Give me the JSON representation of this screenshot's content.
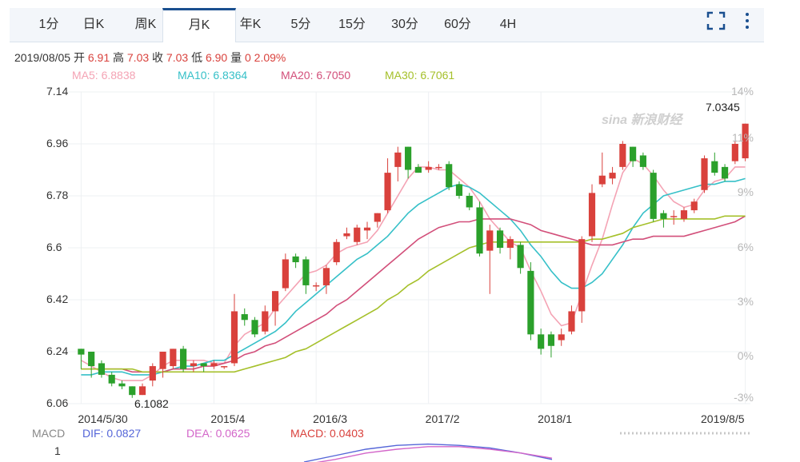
{
  "tabs": [
    "1分",
    "日K",
    "周K",
    "月K",
    "年K",
    "5分",
    "15分",
    "30分",
    "60分",
    "4H"
  ],
  "active_tab": "月K",
  "info": {
    "date": "2019/08/05",
    "open_label": "开",
    "open": "6.91",
    "high_label": "高",
    "high": "7.03",
    "close_label": "收",
    "close": "7.03",
    "low_label": "低",
    "low": "6.90",
    "vol_label": "量",
    "vol": "0",
    "change": "2.09%"
  },
  "ma": {
    "ma5": "MA5: 6.8838",
    "ma10": "MA10: 6.8364",
    "ma20": "MA20: 6.7050",
    "ma30": "MA30: 6.7061"
  },
  "colors": {
    "up": "#d9413c",
    "down": "#2ba02b",
    "ma5": "#f4a3b4",
    "ma10": "#36c0c8",
    "ma20": "#d24f7a",
    "ma30": "#a5c02a",
    "dif": "#5566d8",
    "dea": "#d366c9",
    "macd": "#d9413c",
    "tab_active": "#1a4f8f"
  },
  "watermark": "sina 新浪财经",
  "macd": {
    "label": "MACD",
    "dif": "DIF: 0.0827",
    "dea": "DEA: 0.0625",
    "macd": "MACD: 0.0403",
    "scale": "1"
  },
  "chart_data": {
    "type": "candlestick",
    "title": "",
    "ylim": [
      6.06,
      7.14
    ],
    "y_ticks": [
      "7.14",
      "6.96",
      "6.78",
      "6.6",
      "6.42",
      "6.24",
      "6.06"
    ],
    "y2_ticks": [
      "14%",
      "11%",
      "9%",
      "6%",
      "3%",
      "0%",
      "-3%"
    ],
    "x_ticks": [
      "2014/5/30",
      "2015/4",
      "2016/3",
      "2017/2",
      "2018/1",
      "2019/8/5"
    ],
    "annotations": {
      "max": "7.0345",
      "min": "6.1082"
    },
    "candles": [
      {
        "o": 6.25,
        "c": 6.23,
        "h": 6.25,
        "l": 6.18
      },
      {
        "o": 6.24,
        "c": 6.19,
        "h": 6.24,
        "l": 6.15
      },
      {
        "o": 6.2,
        "c": 6.16,
        "h": 6.21,
        "l": 6.15
      },
      {
        "o": 6.16,
        "c": 6.13,
        "h": 6.17,
        "l": 6.12
      },
      {
        "o": 6.13,
        "c": 6.12,
        "h": 6.14,
        "l": 6.11
      },
      {
        "o": 6.12,
        "c": 6.09,
        "h": 6.12,
        "l": 6.08
      },
      {
        "o": 6.09,
        "c": 6.12,
        "h": 6.13,
        "l": 6.09
      },
      {
        "o": 6.14,
        "c": 6.19,
        "h": 6.2,
        "l": 6.12
      },
      {
        "o": 6.18,
        "c": 6.24,
        "h": 6.24,
        "l": 6.15
      },
      {
        "o": 6.19,
        "c": 6.25,
        "h": 6.25,
        "l": 6.18
      },
      {
        "o": 6.25,
        "c": 6.18,
        "h": 6.26,
        "l": 6.17
      },
      {
        "o": 6.19,
        "c": 6.2,
        "h": 6.21,
        "l": 6.17
      },
      {
        "o": 6.2,
        "c": 6.19,
        "h": 6.2,
        "l": 6.17
      },
      {
        "o": 6.19,
        "c": 6.2,
        "h": 6.21,
        "l": 6.18
      },
      {
        "o": 6.19,
        "c": 6.19,
        "h": 6.19,
        "l": 6.18
      },
      {
        "o": 6.2,
        "c": 6.38,
        "h": 6.44,
        "l": 6.19
      },
      {
        "o": 6.37,
        "c": 6.35,
        "h": 6.39,
        "l": 6.33
      },
      {
        "o": 6.35,
        "c": 6.3,
        "h": 6.36,
        "l": 6.29
      },
      {
        "o": 6.31,
        "c": 6.38,
        "h": 6.4,
        "l": 6.3
      },
      {
        "o": 6.38,
        "c": 6.45,
        "h": 6.45,
        "l": 6.33
      },
      {
        "o": 6.46,
        "c": 6.56,
        "h": 6.58,
        "l": 6.45
      },
      {
        "o": 6.57,
        "c": 6.55,
        "h": 6.58,
        "l": 6.53
      },
      {
        "o": 6.56,
        "c": 6.47,
        "h": 6.57,
        "l": 6.44
      },
      {
        "o": 6.47,
        "c": 6.47,
        "h": 6.48,
        "l": 6.45
      },
      {
        "o": 6.47,
        "c": 6.53,
        "h": 6.54,
        "l": 6.44
      },
      {
        "o": 6.55,
        "c": 6.62,
        "h": 6.63,
        "l": 6.54
      },
      {
        "o": 6.64,
        "c": 6.65,
        "h": 6.67,
        "l": 6.63
      },
      {
        "o": 6.62,
        "c": 6.67,
        "h": 6.68,
        "l": 6.61
      },
      {
        "o": 6.66,
        "c": 6.67,
        "h": 6.69,
        "l": 6.63
      },
      {
        "o": 6.69,
        "c": 6.72,
        "h": 6.72,
        "l": 6.67
      },
      {
        "o": 6.73,
        "c": 6.86,
        "h": 6.91,
        "l": 6.72
      },
      {
        "o": 6.88,
        "c": 6.93,
        "h": 6.95,
        "l": 6.83
      },
      {
        "o": 6.95,
        "c": 6.87,
        "h": 6.95,
        "l": 6.84
      },
      {
        "o": 6.88,
        "c": 6.86,
        "h": 6.89,
        "l": 6.86
      },
      {
        "o": 6.87,
        "c": 6.88,
        "h": 6.9,
        "l": 6.86
      },
      {
        "o": 6.88,
        "c": 6.88,
        "h": 6.89,
        "l": 6.87
      },
      {
        "o": 6.89,
        "c": 6.81,
        "h": 6.9,
        "l": 6.8
      },
      {
        "o": 6.82,
        "c": 6.78,
        "h": 6.83,
        "l": 6.77
      },
      {
        "o": 6.78,
        "c": 6.74,
        "h": 6.79,
        "l": 6.73
      },
      {
        "o": 6.74,
        "c": 6.58,
        "h": 6.76,
        "l": 6.57
      },
      {
        "o": 6.59,
        "c": 6.66,
        "h": 6.68,
        "l": 6.44
      },
      {
        "o": 6.66,
        "c": 6.6,
        "h": 6.67,
        "l": 6.58
      },
      {
        "o": 6.6,
        "c": 6.63,
        "h": 6.64,
        "l": 6.56
      },
      {
        "o": 6.61,
        "c": 6.53,
        "h": 6.62,
        "l": 6.51
      },
      {
        "o": 6.52,
        "c": 6.3,
        "h": 6.55,
        "l": 6.28
      },
      {
        "o": 6.3,
        "c": 6.25,
        "h": 6.32,
        "l": 6.23
      },
      {
        "o": 6.3,
        "c": 6.26,
        "h": 6.31,
        "l": 6.22
      },
      {
        "o": 6.28,
        "c": 6.3,
        "h": 6.32,
        "l": 6.26
      },
      {
        "o": 6.31,
        "c": 6.38,
        "h": 6.4,
        "l": 6.3
      },
      {
        "o": 6.38,
        "c": 6.63,
        "h": 6.64,
        "l": 6.34
      },
      {
        "o": 6.64,
        "c": 6.79,
        "h": 6.82,
        "l": 6.62
      },
      {
        "o": 6.82,
        "c": 6.85,
        "h": 6.93,
        "l": 6.81
      },
      {
        "o": 6.84,
        "c": 6.86,
        "h": 6.88,
        "l": 6.82
      },
      {
        "o": 6.88,
        "c": 6.96,
        "h": 6.97,
        "l": 6.87
      },
      {
        "o": 6.95,
        "c": 6.9,
        "h": 6.95,
        "l": 6.88
      },
      {
        "o": 6.92,
        "c": 6.88,
        "h": 6.93,
        "l": 6.87
      },
      {
        "o": 6.86,
        "c": 6.7,
        "h": 6.87,
        "l": 6.69
      },
      {
        "o": 6.72,
        "c": 6.7,
        "h": 6.73,
        "l": 6.67
      },
      {
        "o": 6.71,
        "c": 6.71,
        "h": 6.73,
        "l": 6.68
      },
      {
        "o": 6.7,
        "c": 6.73,
        "h": 6.74,
        "l": 6.69
      },
      {
        "o": 6.73,
        "c": 6.76,
        "h": 6.77,
        "l": 6.72
      },
      {
        "o": 6.8,
        "c": 6.91,
        "h": 6.92,
        "l": 6.79
      },
      {
        "o": 6.9,
        "c": 6.86,
        "h": 6.93,
        "l": 6.85
      },
      {
        "o": 6.88,
        "c": 6.84,
        "h": 6.89,
        "l": 6.83
      },
      {
        "o": 6.9,
        "c": 6.96,
        "h": 6.97,
        "l": 6.89
      },
      {
        "o": 6.91,
        "c": 7.03,
        "h": 7.03,
        "l": 6.9
      }
    ],
    "ma_series": [
      {
        "name": "MA5",
        "values": [
          6.21,
          6.19,
          6.17,
          6.15,
          6.14,
          6.14,
          6.14,
          6.16,
          6.19,
          6.21,
          6.21,
          6.21,
          6.21,
          6.2,
          6.2,
          6.26,
          6.3,
          6.32,
          6.34,
          6.39,
          6.43,
          6.47,
          6.51,
          6.52,
          6.54,
          6.58,
          6.6,
          6.61,
          6.62,
          6.66,
          6.72,
          6.78,
          6.84,
          6.88,
          6.88,
          6.87,
          6.87,
          6.84,
          6.81,
          6.76,
          6.7,
          6.66,
          6.62,
          6.6,
          6.52,
          6.45,
          6.37,
          6.33,
          6.34,
          6.44,
          6.54,
          6.63,
          6.75,
          6.86,
          6.91,
          6.89,
          6.85,
          6.8,
          6.76,
          6.74,
          6.75,
          6.8,
          6.83,
          6.84,
          6.88,
          6.88
        ]
      },
      {
        "name": "MA10",
        "values": [
          6.16,
          6.16,
          6.17,
          6.17,
          6.17,
          6.16,
          6.16,
          6.16,
          6.17,
          6.18,
          6.19,
          6.19,
          6.2,
          6.21,
          6.21,
          6.23,
          6.25,
          6.27,
          6.29,
          6.31,
          6.34,
          6.38,
          6.41,
          6.44,
          6.47,
          6.5,
          6.53,
          6.56,
          6.58,
          6.61,
          6.64,
          6.68,
          6.72,
          6.75,
          6.77,
          6.79,
          6.81,
          6.82,
          6.81,
          6.79,
          6.76,
          6.73,
          6.7,
          6.66,
          6.61,
          6.57,
          6.52,
          6.48,
          6.46,
          6.46,
          6.48,
          6.51,
          6.56,
          6.61,
          6.67,
          6.72,
          6.75,
          6.78,
          6.79,
          6.8,
          6.81,
          6.82,
          6.82,
          6.83,
          6.83,
          6.84
        ]
      },
      {
        "name": "MA20",
        "values": [
          6.18,
          6.18,
          6.18,
          6.18,
          6.18,
          6.17,
          6.17,
          6.17,
          6.17,
          6.18,
          6.18,
          6.18,
          6.19,
          6.19,
          6.2,
          6.21,
          6.23,
          6.24,
          6.26,
          6.27,
          6.29,
          6.31,
          6.33,
          6.35,
          6.37,
          6.4,
          6.42,
          6.45,
          6.48,
          6.51,
          6.54,
          6.57,
          6.6,
          6.63,
          6.65,
          6.67,
          6.68,
          6.69,
          6.69,
          6.7,
          6.7,
          6.7,
          6.7,
          6.69,
          6.68,
          6.66,
          6.65,
          6.64,
          6.63,
          6.62,
          6.61,
          6.61,
          6.61,
          6.62,
          6.63,
          6.63,
          6.64,
          6.64,
          6.64,
          6.64,
          6.65,
          6.66,
          6.67,
          6.68,
          6.69,
          6.71
        ]
      },
      {
        "name": "MA30",
        "values": [
          6.18,
          6.18,
          6.18,
          6.18,
          6.18,
          6.18,
          6.17,
          6.17,
          6.17,
          6.17,
          6.17,
          6.17,
          6.17,
          6.17,
          6.17,
          6.17,
          6.18,
          6.19,
          6.2,
          6.21,
          6.22,
          6.24,
          6.25,
          6.27,
          6.29,
          6.31,
          6.33,
          6.35,
          6.37,
          6.39,
          6.42,
          6.44,
          6.47,
          6.49,
          6.52,
          6.54,
          6.56,
          6.58,
          6.6,
          6.61,
          6.62,
          6.62,
          6.62,
          6.62,
          6.62,
          6.62,
          6.62,
          6.62,
          6.62,
          6.62,
          6.63,
          6.63,
          6.64,
          6.65,
          6.67,
          6.68,
          6.69,
          6.7,
          6.7,
          6.7,
          6.7,
          6.7,
          6.7,
          6.71,
          6.71,
          6.71
        ]
      }
    ],
    "macd_series": [
      {
        "name": "DIF",
        "values": [
          0.0,
          0.05,
          0.1,
          0.13,
          0.14,
          0.13,
          0.11,
          0.07,
          0.02
        ]
      },
      {
        "name": "DEA",
        "values": [
          -0.02,
          0.02,
          0.07,
          0.1,
          0.12,
          0.12,
          0.1,
          0.07,
          0.03
        ]
      }
    ]
  }
}
